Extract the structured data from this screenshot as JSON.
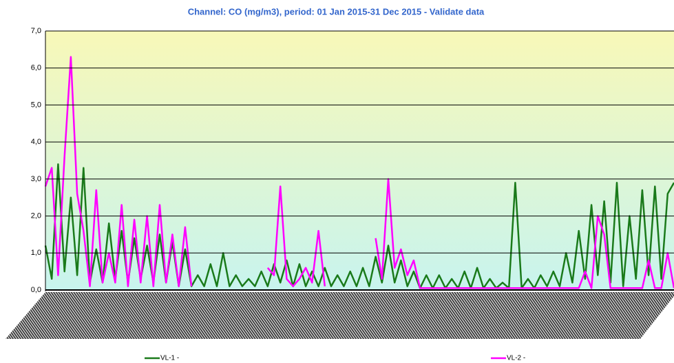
{
  "chart_data": {
    "type": "line",
    "title": "Channel: CO (mg/m3), period: 01 Jan 2015-31 Dec 2015 - Validate data",
    "categories": [
      null,
      null,
      null,
      null,
      null,
      null,
      null,
      null,
      null,
      null,
      null,
      null,
      null,
      null,
      null,
      null,
      null,
      null,
      null,
      null,
      null,
      null,
      null,
      null,
      null,
      null,
      null,
      null,
      null,
      null,
      null,
      null,
      null,
      null,
      null,
      null,
      null,
      null,
      null,
      null,
      null,
      null,
      null,
      null,
      null,
      null,
      null,
      null,
      null,
      null,
      null,
      null,
      null,
      null,
      null,
      null,
      null,
      null,
      null,
      null,
      null,
      null,
      null,
      null,
      null,
      null,
      null,
      null,
      null,
      null,
      null,
      null,
      null,
      null,
      null,
      null,
      null,
      null,
      null,
      null,
      null,
      null,
      null,
      null,
      null,
      null,
      null,
      null,
      null,
      null,
      null,
      null,
      null,
      null,
      null,
      null,
      null,
      null,
      null,
      null
    ],
    "series": [
      {
        "name": "VL-1 -",
        "color": "#1a7a1a",
        "values": [
          1.2,
          0.3,
          3.4,
          0.5,
          2.5,
          0.4,
          3.3,
          0.2,
          1.1,
          0.2,
          1.8,
          0.3,
          1.6,
          0.2,
          1.4,
          0.3,
          1.2,
          0.2,
          1.5,
          0.2,
          1.3,
          0.1,
          1.1,
          0.1,
          0.4,
          0.1,
          0.7,
          0.1,
          1.0,
          0.1,
          0.4,
          0.1,
          0.3,
          0.1,
          0.5,
          0.1,
          0.7,
          0.2,
          0.8,
          0.1,
          0.7,
          0.1,
          0.5,
          0.1,
          0.6,
          0.1,
          0.4,
          0.1,
          0.5,
          0.1,
          0.6,
          0.1,
          0.9,
          0.2,
          1.2,
          0.2,
          0.8,
          0.1,
          0.5,
          0.05,
          0.4,
          0.05,
          0.4,
          0.05,
          0.3,
          0.05,
          0.5,
          0.05,
          0.6,
          0.05,
          0.3,
          0.05,
          0.2,
          0.05,
          2.9,
          0.05,
          0.3,
          0.05,
          0.4,
          0.1,
          0.5,
          0.1,
          1.0,
          0.2,
          1.6,
          0.3,
          2.3,
          0.4,
          2.4,
          0.2,
          2.9,
          0.1,
          2.0,
          0.3,
          2.7,
          0.4,
          2.8,
          0.3,
          2.6,
          2.9
        ]
      },
      {
        "name": "VL-2 -",
        "color": "#ff00ff",
        "values": [
          2.8,
          3.3,
          0.4,
          3.6,
          6.3,
          2.6,
          1.6,
          0.1,
          2.7,
          0.2,
          1.0,
          0.2,
          2.3,
          0.1,
          1.9,
          0.2,
          2.0,
          0.1,
          2.3,
          0.2,
          1.5,
          0.1,
          1.7,
          0.1,
          null,
          null,
          null,
          null,
          null,
          null,
          null,
          null,
          null,
          null,
          null,
          0.6,
          0.4,
          2.8,
          0.3,
          0.1,
          0.3,
          0.6,
          0.2,
          1.6,
          0.1,
          null,
          null,
          null,
          null,
          null,
          null,
          null,
          1.4,
          0.3,
          3.0,
          0.6,
          1.1,
          0.4,
          0.8,
          0.05,
          0.05,
          0.05,
          0.05,
          0.05,
          0.05,
          0.05,
          0.05,
          0.05,
          0.05,
          0.05,
          0.05,
          0.05,
          0.05,
          0.05,
          0.05,
          0.05,
          0.05,
          0.05,
          0.05,
          0.05,
          0.05,
          0.05,
          0.05,
          0.05,
          0.05,
          0.5,
          0.05,
          2.0,
          1.5,
          0.05,
          0.05,
          0.05,
          0.05,
          0.05,
          0.05,
          0.8,
          0.05,
          0.05,
          1.0,
          0.05
        ]
      }
    ],
    "ylim": [
      0,
      7
    ],
    "yticks": [
      {
        "value": 0,
        "label": "0,0"
      },
      {
        "value": 1,
        "label": "1,0"
      },
      {
        "value": 2,
        "label": "2,0"
      },
      {
        "value": 3,
        "label": "3,0"
      },
      {
        "value": 4,
        "label": "4,0"
      },
      {
        "value": 5,
        "label": "5,0"
      },
      {
        "value": 6,
        "label": "6,0"
      },
      {
        "value": 7,
        "label": "7,0"
      }
    ],
    "grid": true
  }
}
